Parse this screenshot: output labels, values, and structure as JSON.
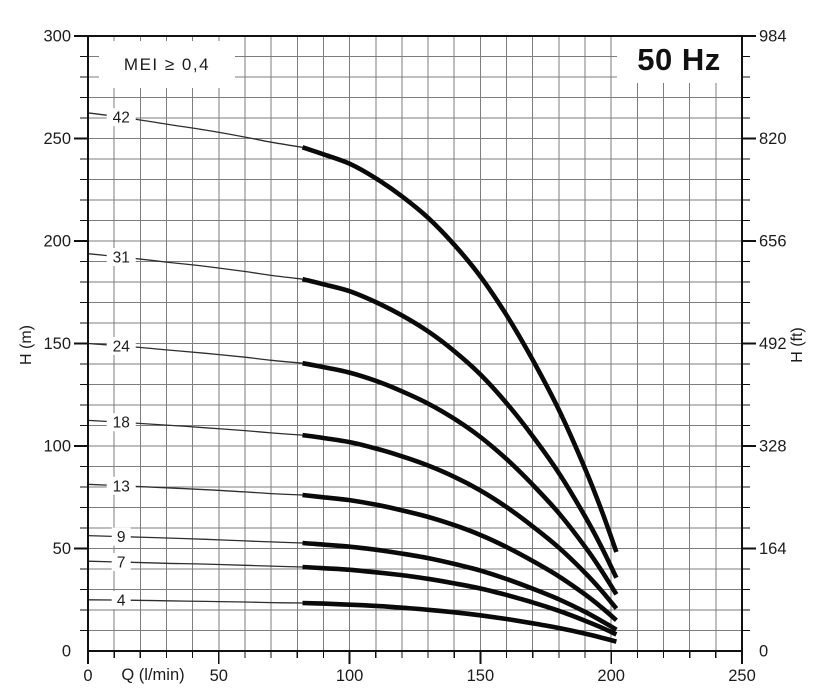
{
  "chart_data": {
    "type": "line",
    "title": "50 Hz",
    "annotation": "MEI ≥ 0,4",
    "xlabel": "Q (l/min)",
    "ylabel": "H (m)",
    "y2label": "H (ft)",
    "xlim": [
      0,
      250
    ],
    "ylim": [
      0,
      300
    ],
    "y2lim_ft": [
      0,
      984
    ],
    "grid": "minor gridlines every 10 l/min and every 10 m, grid on",
    "legend_position": "labels on curves at left",
    "curve_style": "thin line from Q=0 to Q=82, thick line from Q=82 to Q=202",
    "q": [
      0,
      15,
      30,
      45,
      60,
      70,
      82,
      90,
      100,
      110,
      120,
      130,
      140,
      150,
      160,
      170,
      180,
      190,
      196,
      202
    ],
    "thick_from_q": 82,
    "series": [
      {
        "label": "42",
        "stages": 42,
        "h_m": [
          262.5,
          260.0,
          257.0,
          254.1,
          250.7,
          248.2,
          245.7,
          242.3,
          237.7,
          230.6,
          221.8,
          211.3,
          198.2,
          182.7,
          163.8,
          142.0,
          117.6,
          89.0,
          69.7,
          48.3
        ]
      },
      {
        "label": "31",
        "stages": 31,
        "h_m": [
          193.8,
          191.9,
          189.7,
          187.6,
          185.1,
          183.2,
          181.4,
          178.9,
          175.5,
          170.2,
          163.7,
          155.9,
          146.3,
          134.9,
          120.9,
          104.8,
          86.8,
          65.7,
          51.5,
          35.7
        ]
      },
      {
        "label": "24",
        "stages": 24,
        "h_m": [
          150.0,
          148.6,
          146.9,
          145.2,
          143.3,
          141.8,
          140.4,
          138.5,
          135.8,
          131.8,
          126.7,
          120.7,
          113.3,
          104.4,
          93.6,
          81.1,
          67.2,
          50.9,
          39.8,
          27.6
        ]
      },
      {
        "label": "18",
        "stages": 18,
        "h_m": [
          112.5,
          111.4,
          110.2,
          108.9,
          107.5,
          106.4,
          105.3,
          103.9,
          101.9,
          98.8,
          95.0,
          90.5,
          85.0,
          78.3,
          70.2,
          60.8,
          50.4,
          38.2,
          29.9,
          20.7
        ]
      },
      {
        "label": "13",
        "stages": 13,
        "h_m": [
          81.3,
          80.5,
          79.6,
          78.7,
          77.6,
          76.8,
          76.1,
          75.0,
          73.6,
          71.4,
          68.6,
          65.4,
          61.4,
          56.6,
          50.7,
          43.9,
          36.4,
          27.6,
          21.6,
          15.0
        ]
      },
      {
        "label": "9",
        "stages": 9,
        "h_m": [
          56.3,
          55.7,
          55.1,
          54.5,
          53.7,
          53.2,
          52.7,
          51.9,
          50.9,
          49.4,
          47.5,
          45.3,
          42.5,
          39.2,
          35.1,
          30.4,
          25.2,
          19.1,
          14.9,
          10.4
        ]
      },
      {
        "label": "7",
        "stages": 7,
        "h_m": [
          43.8,
          43.3,
          42.8,
          42.4,
          41.8,
          41.4,
          41.0,
          40.4,
          39.6,
          38.4,
          37.0,
          35.2,
          33.0,
          30.5,
          27.3,
          23.7,
          19.6,
          14.8,
          11.6,
          8.1
        ]
      },
      {
        "label": "4",
        "stages": 4,
        "h_m": [
          25.0,
          24.8,
          24.5,
          24.2,
          23.9,
          23.6,
          23.4,
          23.1,
          22.6,
          22.0,
          21.1,
          20.1,
          18.9,
          17.4,
          15.6,
          13.5,
          11.2,
          8.5,
          6.6,
          4.6
        ]
      }
    ]
  },
  "axes": {
    "left": {
      "title": "H (m)",
      "ticks": [
        300,
        250,
        200,
        150,
        100,
        50,
        0
      ],
      "minor_step_m": 10
    },
    "right": {
      "title": "H (ft)",
      "ticks": [
        984,
        820,
        656,
        492,
        328,
        164,
        0
      ],
      "minor_step_m": 10
    },
    "bottom": {
      "title": "Q (l/min)",
      "ticks": [
        0,
        50,
        100,
        150,
        200,
        250
      ],
      "minor_step": 10
    }
  },
  "colors": {
    "curve": "#0a0a0a",
    "thin_curve": "#2e2e2e",
    "grid": "#7d7d7d",
    "frame": "#111111",
    "text": "#1c1c1c",
    "background": "#ffffff"
  }
}
